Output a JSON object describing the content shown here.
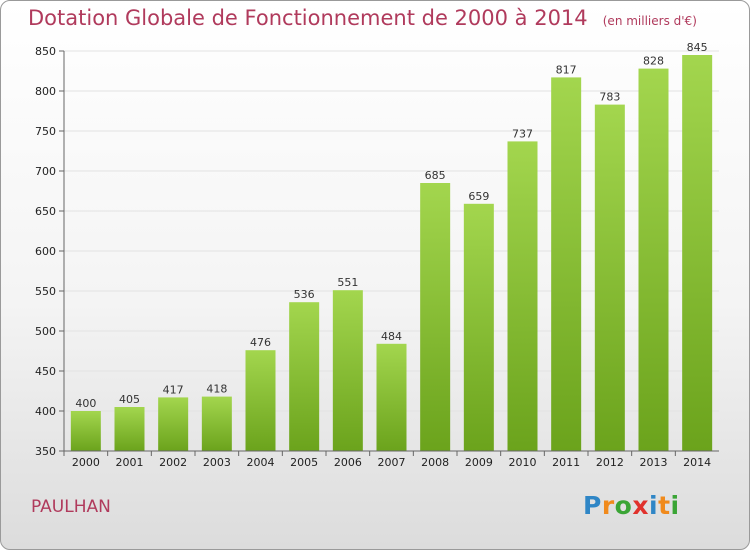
{
  "header": {
    "title": "Dotation Globale de Fonctionnement de 2000 à 2014",
    "unit": "(en milliers d'€)"
  },
  "footer": {
    "commune": "PAULHAN",
    "logo": {
      "letters": [
        "P",
        "r",
        "o",
        "x",
        "i",
        "t",
        "i"
      ],
      "colors": [
        "#2f86c6",
        "#f08a1c",
        "#3aa535",
        "#e0312c",
        "#2f86c6",
        "#f08a1c",
        "#3aa535"
      ]
    }
  },
  "chart_data": {
    "type": "bar",
    "title": "Dotation Globale de Fonctionnement de 2000 à 2014",
    "subtitle": "(en milliers d'€)",
    "categories": [
      "2000",
      "2001",
      "2002",
      "2003",
      "2004",
      "2005",
      "2006",
      "2007",
      "2008",
      "2009",
      "2010",
      "2011",
      "2012",
      "2013",
      "2014"
    ],
    "values": [
      400,
      405,
      417,
      418,
      476,
      536,
      551,
      484,
      685,
      659,
      737,
      817,
      783,
      828,
      845
    ],
    "ylim": [
      350,
      850
    ],
    "yticks": [
      350,
      400,
      450,
      500,
      550,
      600,
      650,
      700,
      750,
      800,
      850
    ],
    "xlabel": "",
    "ylabel": "",
    "grid": true,
    "colors": {
      "bar_top": "#a3d64e",
      "bar_bottom": "#6ba31c",
      "grid": "#e2e2e2",
      "axis": "#666666"
    }
  }
}
